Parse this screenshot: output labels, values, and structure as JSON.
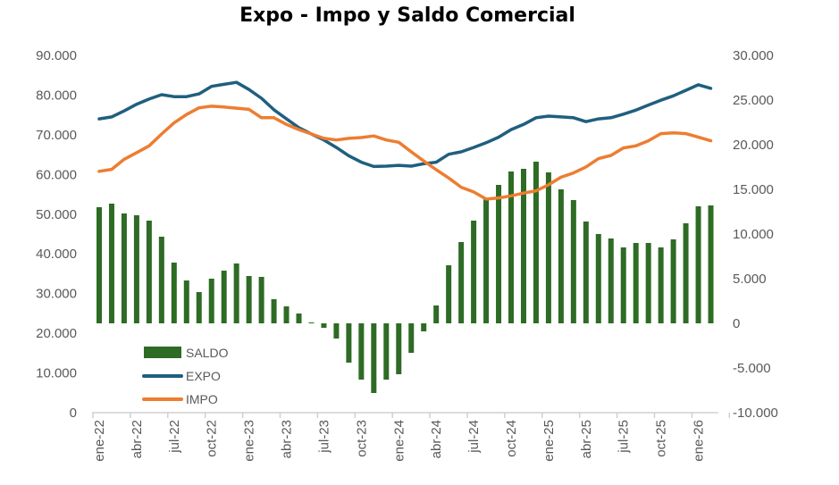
{
  "chart_data": {
    "type": "bar+line",
    "title": "Expo - Impo y Saldo Comercial",
    "colors": {
      "title": "#1F5C80",
      "SALDO": "#2E6B25",
      "EXPO": "#1F5F7F",
      "IMPO": "#ED7D31",
      "axis_text": "#595959"
    },
    "legend_position": "bottom-left",
    "grid": false,
    "x_tick_labels": [
      "ene-22",
      "abr-22",
      "jul-22",
      "oct-22",
      "ene-23",
      "abr-23",
      "jul-23",
      "oct-23",
      "ene-24",
      "abr-24",
      "jul-24",
      "oct-24",
      "ene-25",
      "abr-25",
      "jul-25",
      "oct-25",
      "ene-26"
    ],
    "x_months": [
      "ene-22",
      "feb-22",
      "mar-22",
      "abr-22",
      "may-22",
      "jun-22",
      "jul-22",
      "ago-22",
      "sep-22",
      "oct-22",
      "nov-22",
      "dic-22",
      "ene-23",
      "feb-23",
      "mar-23",
      "abr-23",
      "may-23",
      "jun-23",
      "jul-23",
      "ago-23",
      "sep-23",
      "oct-23",
      "nov-23",
      "dic-23",
      "ene-24",
      "feb-24",
      "mar-24",
      "abr-24",
      "may-24",
      "jun-24",
      "jul-24",
      "ago-24",
      "sep-24",
      "oct-24",
      "nov-24",
      "dic-24",
      "ene-25",
      "feb-25",
      "mar-25",
      "abr-25",
      "may-25",
      "jun-25",
      "jul-25",
      "ago-25",
      "sep-25",
      "oct-25",
      "nov-25",
      "dic-25",
      "ene-26",
      "feb-26"
    ],
    "y_left": {
      "range": [
        0,
        90000
      ],
      "tick_labels": [
        "0",
        "10.000",
        "20.000",
        "30.000",
        "40.000",
        "50.000",
        "60.000",
        "70.000",
        "80.000",
        "90.000"
      ]
    },
    "y_right": {
      "range": [
        -10000,
        30000
      ],
      "tick_labels": [
        "-10.000",
        "-5.000",
        "0",
        "5.000",
        "10.000",
        "15.000",
        "20.000",
        "25.000",
        "30.000"
      ]
    },
    "series": [
      {
        "name": "SALDO",
        "type": "bar",
        "axis": "right",
        "values": [
          13000,
          13400,
          12300,
          12100,
          11500,
          9700,
          6800,
          4800,
          3500,
          5000,
          5900,
          6700,
          5300,
          5200,
          2700,
          1900,
          1100,
          100,
          -500,
          -1700,
          -4400,
          -6300,
          -7800,
          -6300,
          -5700,
          -3300,
          -900,
          2000,
          6500,
          9100,
          11500,
          14000,
          15500,
          17000,
          17300,
          18100,
          16900,
          15000,
          13800,
          11400,
          10000,
          9500,
          8500,
          9000,
          9000,
          8500,
          9400,
          11200,
          13100,
          13200
        ]
      },
      {
        "name": "EXPO",
        "type": "line",
        "axis": "left",
        "values": [
          74000,
          74500,
          76000,
          77700,
          79000,
          80100,
          79600,
          79600,
          80300,
          82200,
          82700,
          83200,
          81400,
          79200,
          76300,
          74000,
          71800,
          70200,
          68700,
          66800,
          64700,
          63100,
          62000,
          62100,
          62300,
          62100,
          62700,
          63100,
          65100,
          65700,
          66800,
          68000,
          69400,
          71300,
          72600,
          74300,
          74700,
          74500,
          74300,
          73300,
          74000,
          74300,
          75200,
          76200,
          77500,
          78700,
          79800,
          81200,
          82600,
          81700
        ]
      },
      {
        "name": "IMPO",
        "type": "line",
        "axis": "left",
        "values": [
          60800,
          61300,
          63800,
          65500,
          67200,
          70200,
          73000,
          75100,
          76800,
          77200,
          77000,
          76700,
          76400,
          74300,
          74300,
          72600,
          71300,
          70200,
          69100,
          68700,
          69100,
          69300,
          69700,
          68700,
          68100,
          65700,
          63400,
          61200,
          59100,
          56800,
          55600,
          53800,
          54100,
          54600,
          55300,
          55900,
          57400,
          59300,
          60400,
          61900,
          64000,
          64800,
          66700,
          67200,
          68500,
          70300,
          70500,
          70300,
          69400,
          68500
        ]
      }
    ]
  }
}
